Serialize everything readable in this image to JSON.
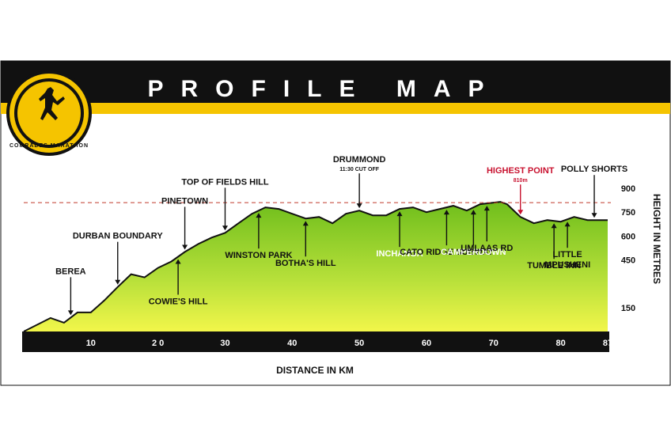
{
  "chart_data": {
    "type": "area",
    "title": "PROFILE MAP",
    "logo_text": "COMRADES MARATHON",
    "xlabel": "DISTANCE IN KM",
    "ylabel": "HEIGHT IN METRES",
    "x_ticks": [
      "10",
      "2 0",
      "30",
      "40",
      "50",
      "60",
      "70",
      "80",
      "87"
    ],
    "x_tick_values": [
      10,
      20,
      30,
      40,
      50,
      60,
      70,
      80,
      87
    ],
    "y_ticks": [
      "900",
      "750",
      "600",
      "450",
      "150"
    ],
    "y_tick_values": [
      900,
      750,
      600,
      450,
      150
    ],
    "xlim": [
      0,
      87
    ],
    "ylim": [
      0,
      900
    ],
    "reference_line": {
      "value": 810,
      "style": "dashed",
      "color": "#c0392b"
    },
    "series": [
      {
        "x": [
          0,
          4,
          6,
          8,
          10,
          12,
          14,
          16,
          18,
          20,
          22,
          24,
          26,
          28,
          30,
          32,
          34,
          36,
          38,
          40,
          42,
          44,
          46,
          48,
          50,
          52,
          54,
          56,
          58,
          60,
          62,
          64,
          66,
          68,
          70,
          71,
          72,
          74,
          76,
          78,
          80,
          82,
          84,
          87
        ],
        "values": [
          0,
          85,
          55,
          120,
          120,
          195,
          280,
          360,
          340,
          400,
          440,
          500,
          550,
          590,
          620,
          680,
          740,
          780,
          770,
          740,
          710,
          720,
          680,
          740,
          760,
          730,
          730,
          770,
          780,
          750,
          770,
          790,
          760,
          800,
          810,
          815,
          800,
          720,
          680,
          700,
          690,
          720,
          700,
          700
        ]
      }
    ],
    "annotations": [
      {
        "label": "BEREA",
        "x": 7,
        "position": "above",
        "color": "dark"
      },
      {
        "label": "DURBAN BOUNDARY",
        "x": 14,
        "position": "above",
        "color": "dark"
      },
      {
        "label": "COWIE'S HILL",
        "x": 23,
        "position": "below",
        "color": "dark"
      },
      {
        "label": "PINETOWN",
        "x": 24,
        "position": "above",
        "color": "dark"
      },
      {
        "label": "WINSTON PARK",
        "x": 35,
        "position": "below",
        "color": "dark"
      },
      {
        "label": "TOP OF FIELDS HILL",
        "x": 30,
        "position": "above",
        "color": "dark"
      },
      {
        "label": "BOTHA'S HILL",
        "x": 42,
        "position": "below",
        "color": "dark"
      },
      {
        "label": "DRUMMOND",
        "sublabel": "11:30 CUT OFF",
        "x": 50,
        "position": "above",
        "color": "dark"
      },
      {
        "label": "INCHANGA",
        "x": 56,
        "position": "below",
        "color": "white"
      },
      {
        "label": "CATO RIDGE SUBWAY",
        "x": 63,
        "position": "below",
        "color": "dark"
      },
      {
        "label": "CAMPERDOWN",
        "x": 67,
        "position": "below",
        "color": "white"
      },
      {
        "label": "UMLAAS RD",
        "x": 69,
        "position": "below",
        "color": "dark"
      },
      {
        "label": "HIGHEST POINT",
        "sublabel": "810m",
        "x": 74,
        "position": "above",
        "color": "red"
      },
      {
        "label": "TUMBLE INN",
        "x": 79,
        "position": "below",
        "color": "dark"
      },
      {
        "label": "LITTLE",
        "sublabel": "MPUSHENI",
        "x": 81,
        "position": "below",
        "color": "dark"
      },
      {
        "label": "POLLY SHORTS",
        "x": 85,
        "position": "above",
        "color": "dark"
      }
    ],
    "colors": {
      "banner": "#111111",
      "accent": "#f5c400",
      "fill_top": "#7cc520",
      "fill_bottom": "#f0f542",
      "axis_band": "#111111",
      "reference": "#c0392b",
      "highlight_text": "#c8102e"
    }
  }
}
